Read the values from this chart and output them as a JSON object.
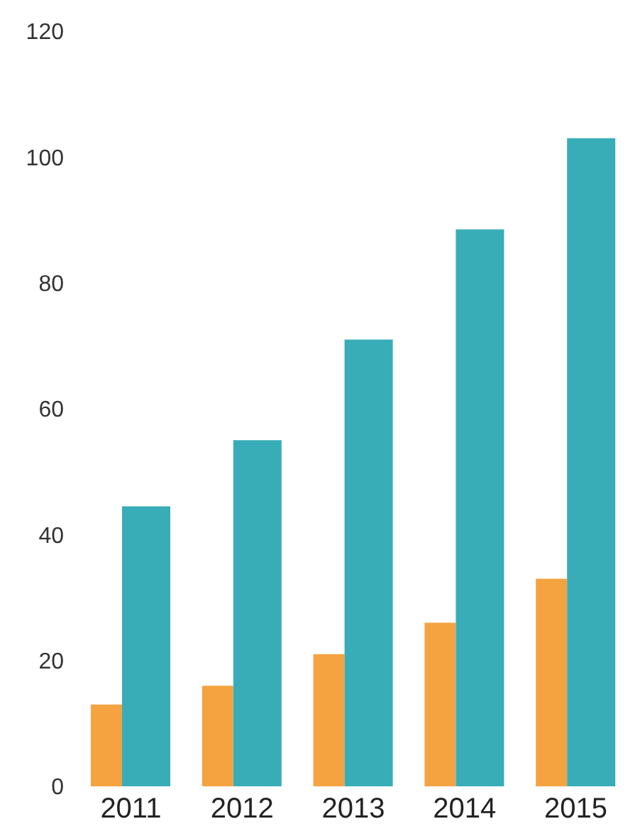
{
  "chart_data": {
    "type": "bar",
    "categories": [
      "2011",
      "2012",
      "2013",
      "2014",
      "2015"
    ],
    "series": [
      {
        "color": "#f4a340",
        "values": [
          13,
          16,
          21,
          26,
          33
        ]
      },
      {
        "color": "#38adb8",
        "values": [
          44.5,
          55,
          71,
          88.5,
          103
        ]
      }
    ],
    "ylim": [
      0,
      120
    ],
    "yticks": [
      0,
      20,
      40,
      60,
      80,
      100,
      120
    ],
    "grid": false,
    "legend": false
  }
}
